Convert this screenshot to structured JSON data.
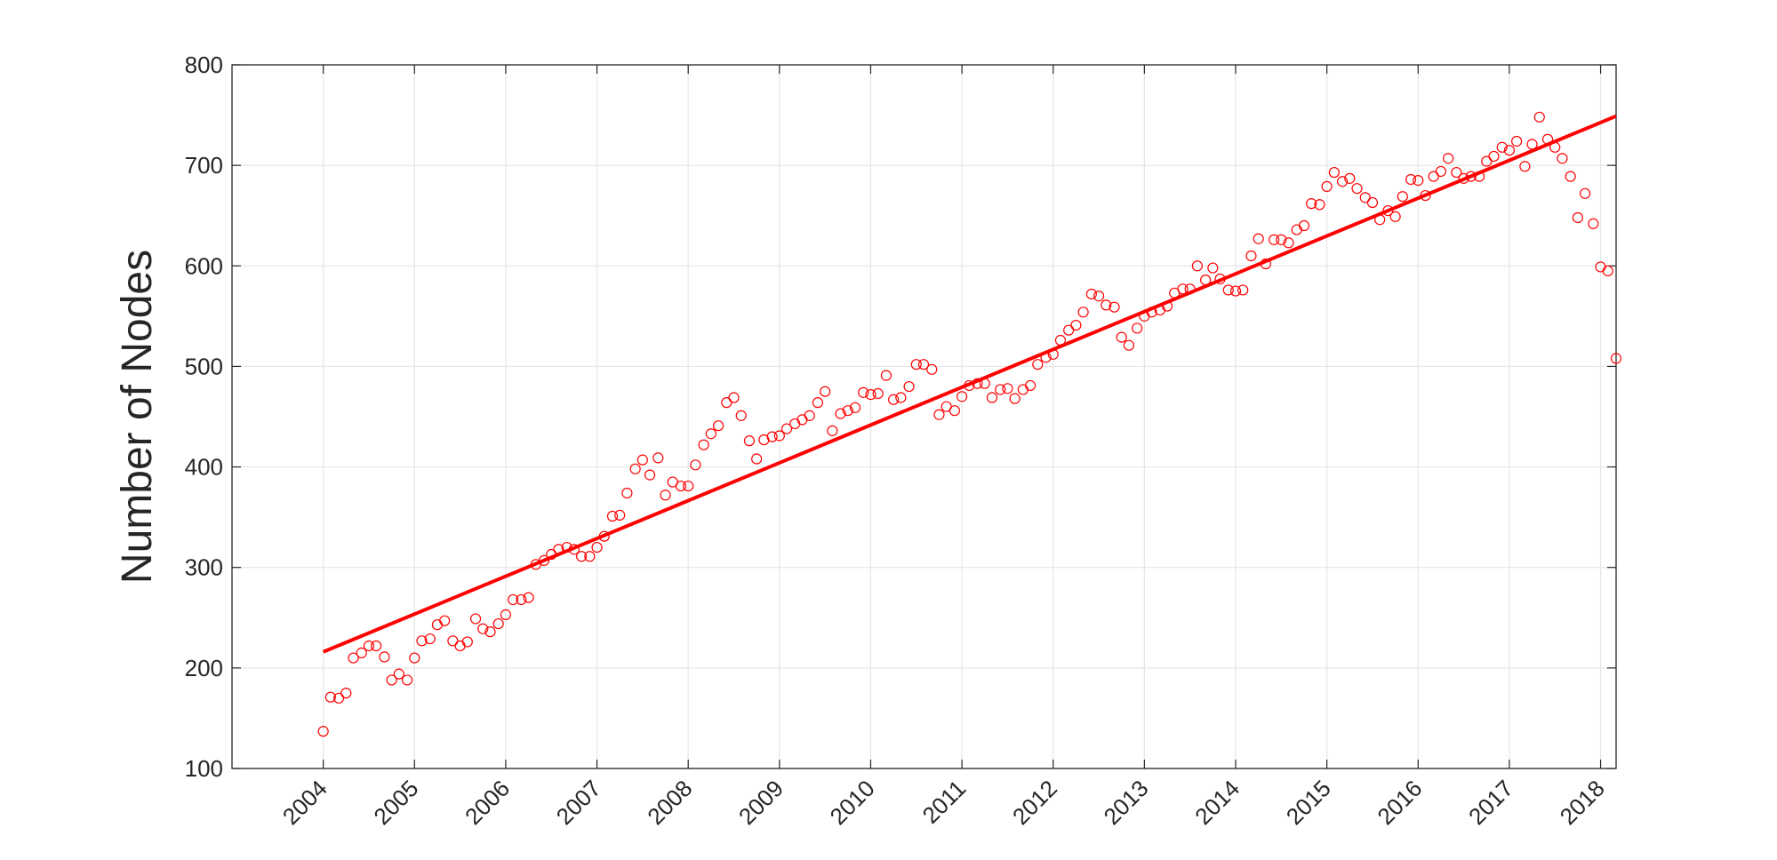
{
  "chart_data": {
    "type": "scatter",
    "ylabel": "Number of Nodes",
    "xlim": [
      2003,
      2018.17
    ],
    "ylim": [
      100,
      800
    ],
    "xticks": [
      2004,
      2005,
      2006,
      2007,
      2008,
      2009,
      2010,
      2011,
      2012,
      2013,
      2014,
      2015,
      2016,
      2017,
      2018
    ],
    "yticks": [
      100,
      200,
      300,
      400,
      500,
      600,
      700,
      800
    ],
    "grid": true,
    "series": [
      {
        "color": "#ff0000",
        "x": [
          2004,
          2004.08,
          2004.17,
          2004.25,
          2004.33,
          2004.42,
          2004.5,
          2004.58,
          2004.67,
          2004.75,
          2004.83,
          2004.92,
          2005,
          2005.08,
          2005.17,
          2005.25,
          2005.33,
          2005.42,
          2005.5,
          2005.58,
          2005.67,
          2005.75,
          2005.83,
          2005.92,
          2006,
          2006.08,
          2006.17,
          2006.25,
          2006.33,
          2006.42,
          2006.5,
          2006.58,
          2006.67,
          2006.75,
          2006.83,
          2006.92,
          2007,
          2007.08,
          2007.17,
          2007.25,
          2007.33,
          2007.42,
          2007.5,
          2007.58,
          2007.67,
          2007.75,
          2007.83,
          2007.92,
          2008,
          2008.08,
          2008.17,
          2008.25,
          2008.33,
          2008.42,
          2008.5,
          2008.58,
          2008.67,
          2008.75,
          2008.83,
          2008.92,
          2009,
          2009.08,
          2009.17,
          2009.25,
          2009.33,
          2009.42,
          2009.5,
          2009.58,
          2009.67,
          2009.75,
          2009.83,
          2009.92,
          2010,
          2010.08,
          2010.17,
          2010.25,
          2010.33,
          2010.42,
          2010.5,
          2010.58,
          2010.67,
          2010.75,
          2010.83,
          2010.92,
          2011,
          2011.08,
          2011.17,
          2011.25,
          2011.33,
          2011.42,
          2011.5,
          2011.58,
          2011.67,
          2011.75,
          2011.83,
          2011.92,
          2012,
          2012.08,
          2012.17,
          2012.25,
          2012.33,
          2012.42,
          2012.5,
          2012.58,
          2012.67,
          2012.75,
          2012.83,
          2012.92,
          2013,
          2013.08,
          2013.17,
          2013.25,
          2013.33,
          2013.42,
          2013.5,
          2013.58,
          2013.67,
          2013.75,
          2013.83,
          2013.92,
          2014,
          2014.08,
          2014.17,
          2014.25,
          2014.33,
          2014.42,
          2014.5,
          2014.58,
          2014.67,
          2014.75,
          2014.83,
          2014.92,
          2015,
          2015.08,
          2015.17,
          2015.25,
          2015.33,
          2015.42,
          2015.5,
          2015.58,
          2015.67,
          2015.75,
          2015.83,
          2015.92,
          2016,
          2016.08,
          2016.17,
          2016.25,
          2016.33,
          2016.42,
          2016.5,
          2016.58,
          2016.67,
          2016.75,
          2016.83,
          2016.92,
          2017,
          2017.08,
          2017.17,
          2017.25,
          2017.33,
          2017.42,
          2017.5,
          2017.58,
          2017.67,
          2017.75,
          2017.83,
          2017.92,
          2018,
          2018.08,
          2018.17
        ],
        "values": [
          137,
          171,
          170,
          175,
          210,
          215,
          222,
          222,
          211,
          188,
          194,
          188,
          210,
          227,
          229,
          243,
          247,
          227,
          222,
          226,
          249,
          239,
          236,
          244,
          253,
          268,
          268,
          270,
          303,
          307,
          313,
          318,
          320,
          318,
          311,
          311,
          320,
          331,
          351,
          352,
          374,
          398,
          407,
          392,
          409,
          372,
          385,
          381,
          381,
          402,
          422,
          433,
          441,
          464,
          469,
          451,
          426,
          408,
          427,
          430,
          431,
          438,
          443,
          447,
          451,
          464,
          475,
          436,
          453,
          456,
          459,
          474,
          472,
          473,
          491,
          467,
          469,
          480,
          502,
          502,
          497,
          452,
          460,
          456,
          470,
          481,
          483,
          483,
          469,
          477,
          478,
          468,
          477,
          481,
          502,
          509,
          512,
          526,
          536,
          541,
          554,
          572,
          570,
          561,
          559,
          529,
          521,
          538,
          550,
          554,
          556,
          560,
          573,
          577,
          577,
          600,
          586,
          598,
          587,
          576,
          575,
          576,
          610,
          627,
          602,
          626,
          626,
          623,
          636,
          640,
          662,
          661,
          679,
          693,
          684,
          687,
          677,
          668,
          663,
          646,
          655,
          649,
          669,
          686,
          685,
          670,
          689,
          694,
          707,
          693,
          687,
          689,
          689,
          704,
          709,
          718,
          715,
          724,
          699,
          721,
          748,
          726,
          718,
          707,
          689,
          648,
          672,
          642,
          599,
          595,
          508
        ]
      }
    ],
    "trend_line": {
      "color": "#ff0000",
      "x": [
        2004,
        2018.17
      ],
      "values": [
        216,
        749
      ]
    }
  }
}
